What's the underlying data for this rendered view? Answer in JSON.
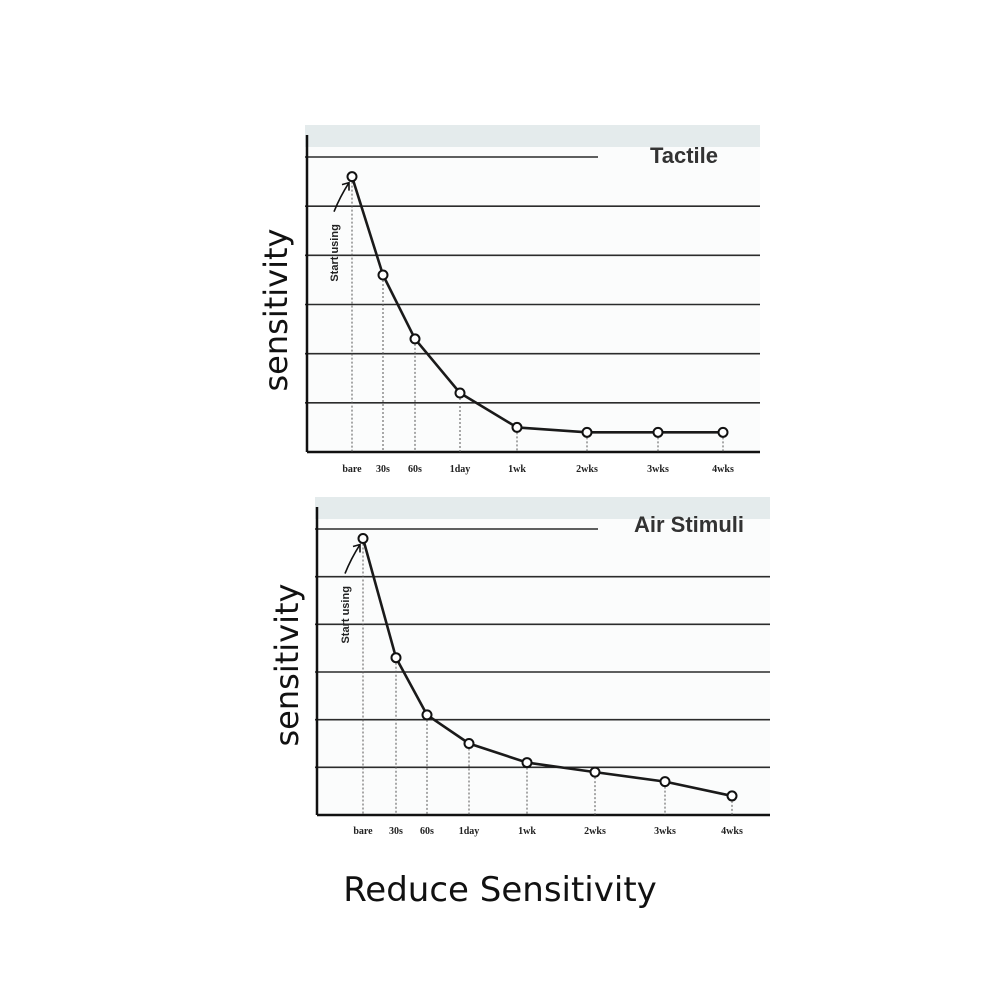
{
  "caption": "Reduce Sensitivity",
  "chart_data": [
    {
      "type": "line",
      "title": "Tactile",
      "ylabel": "sensitivity",
      "xlabel": "",
      "categories": [
        "bare",
        "30s",
        "60s",
        "1day",
        "1wk",
        "2wks",
        "3wks",
        "4wks"
      ],
      "values": [
        5.6,
        3.6,
        2.3,
        1.2,
        0.5,
        0.4,
        0.4,
        0.4
      ],
      "ylim": [
        0,
        6
      ],
      "grid": true,
      "annotation": "Start using",
      "line_color": "#1a1a1a",
      "marker": "open-circle"
    },
    {
      "type": "line",
      "title": "Air Stimuli",
      "ylabel": "sensitivity",
      "xlabel": "",
      "categories": [
        "bare",
        "30s",
        "60s",
        "1day",
        "1wk",
        "2wks",
        "3wks",
        "4wks"
      ],
      "values": [
        5.8,
        3.3,
        2.1,
        1.5,
        1.1,
        0.9,
        0.7,
        0.4
      ],
      "ylim": [
        0,
        6
      ],
      "grid": true,
      "annotation": "Start using",
      "line_color": "#1a1a1a",
      "marker": "open-circle"
    }
  ]
}
